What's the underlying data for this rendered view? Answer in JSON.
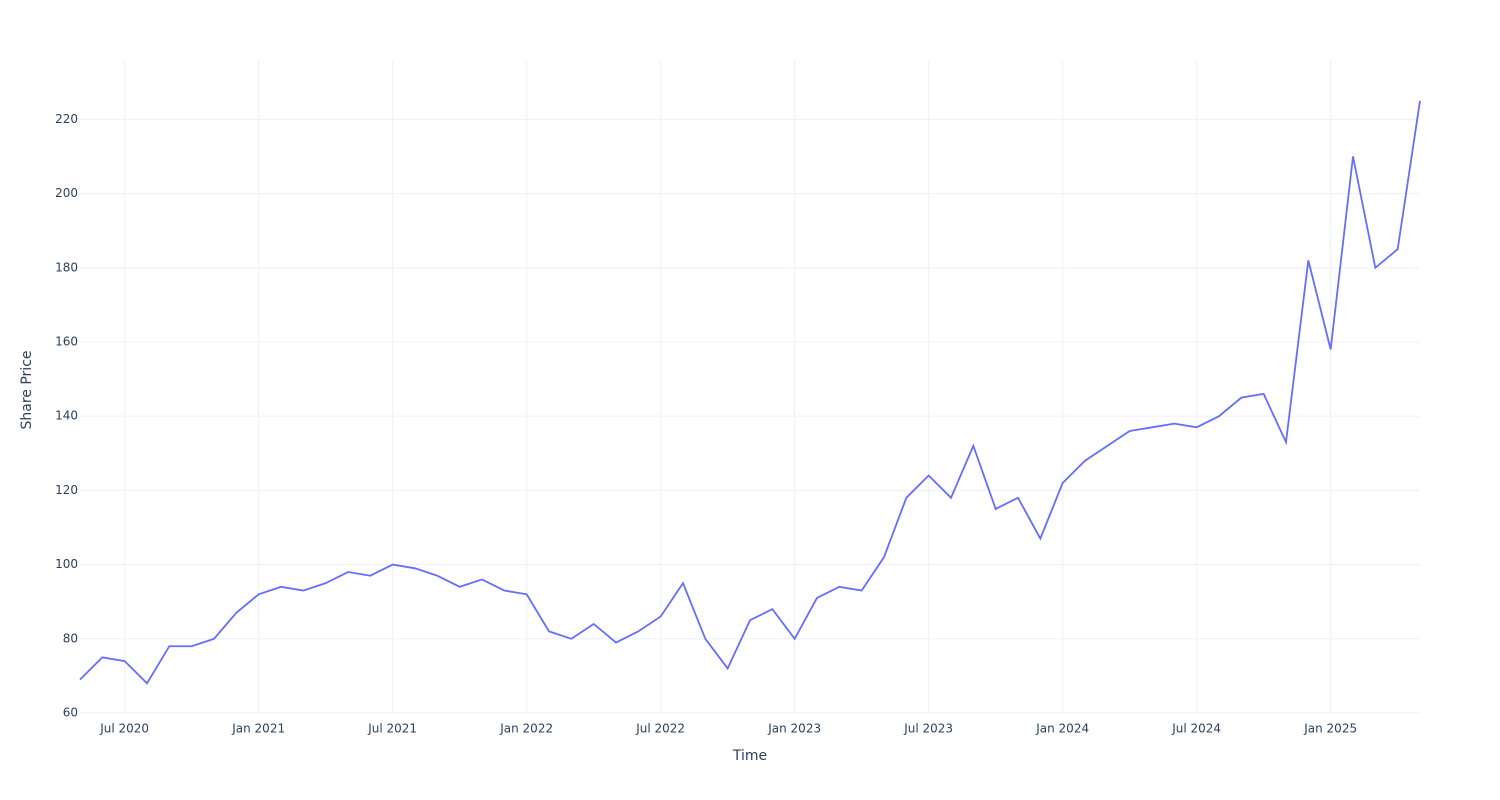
{
  "chart_data": {
    "type": "line",
    "xlabel": "Time",
    "ylabel": "Share Price",
    "x": [
      "2020-05",
      "2020-06",
      "2020-07",
      "2020-08",
      "2020-09",
      "2020-10",
      "2020-11",
      "2020-12",
      "2021-01",
      "2021-02",
      "2021-03",
      "2021-04",
      "2021-05",
      "2021-06",
      "2021-07",
      "2021-08",
      "2021-09",
      "2021-10",
      "2021-11",
      "2021-12",
      "2022-01",
      "2022-02",
      "2022-03",
      "2022-04",
      "2022-05",
      "2022-06",
      "2022-07",
      "2022-08",
      "2022-09",
      "2022-10",
      "2022-11",
      "2022-12",
      "2023-01",
      "2023-02",
      "2023-03",
      "2023-04",
      "2023-05",
      "2023-06",
      "2023-07",
      "2023-08",
      "2023-09",
      "2023-10",
      "2023-11",
      "2023-12",
      "2024-01",
      "2024-02",
      "2024-03",
      "2024-04",
      "2024-05",
      "2024-06",
      "2024-07",
      "2024-08",
      "2024-09",
      "2024-10",
      "2024-11",
      "2024-12",
      "2025-01",
      "2025-02",
      "2025-03",
      "2025-04",
      "2025-05"
    ],
    "series": [
      {
        "name": "Share Price",
        "color": "#636efa",
        "values": [
          69,
          75,
          74,
          68,
          78,
          78,
          80,
          87,
          92,
          94,
          93,
          95,
          98,
          97,
          100,
          99,
          97,
          94,
          96,
          93,
          92,
          82,
          80,
          84,
          79,
          82,
          86,
          95,
          80,
          72,
          85,
          88,
          80,
          91,
          94,
          93,
          102,
          118,
          124,
          118,
          132,
          115,
          118,
          107,
          122,
          128,
          132,
          136,
          137,
          138,
          137,
          140,
          145,
          146,
          133,
          182,
          158,
          210,
          180,
          185,
          225
        ]
      }
    ],
    "xlim": [
      "2020-05",
      "2025-05"
    ],
    "xticks": [
      {
        "value": "2020-07",
        "label": "Jul 2020"
      },
      {
        "value": "2021-01",
        "label": "Jan 2021"
      },
      {
        "value": "2021-07",
        "label": "Jul 2021"
      },
      {
        "value": "2022-01",
        "label": "Jan 2022"
      },
      {
        "value": "2022-07",
        "label": "Jul 2022"
      },
      {
        "value": "2023-01",
        "label": "Jan 2023"
      },
      {
        "value": "2023-07",
        "label": "Jul 2023"
      },
      {
        "value": "2024-01",
        "label": "Jan 2024"
      },
      {
        "value": "2024-07",
        "label": "Jul 2024"
      },
      {
        "value": "2025-01",
        "label": "Jan 2025"
      }
    ],
    "ylim": [
      60,
      236
    ],
    "yticks": [
      60,
      80,
      100,
      120,
      140,
      160,
      180,
      200,
      220
    ],
    "grid": true
  }
}
